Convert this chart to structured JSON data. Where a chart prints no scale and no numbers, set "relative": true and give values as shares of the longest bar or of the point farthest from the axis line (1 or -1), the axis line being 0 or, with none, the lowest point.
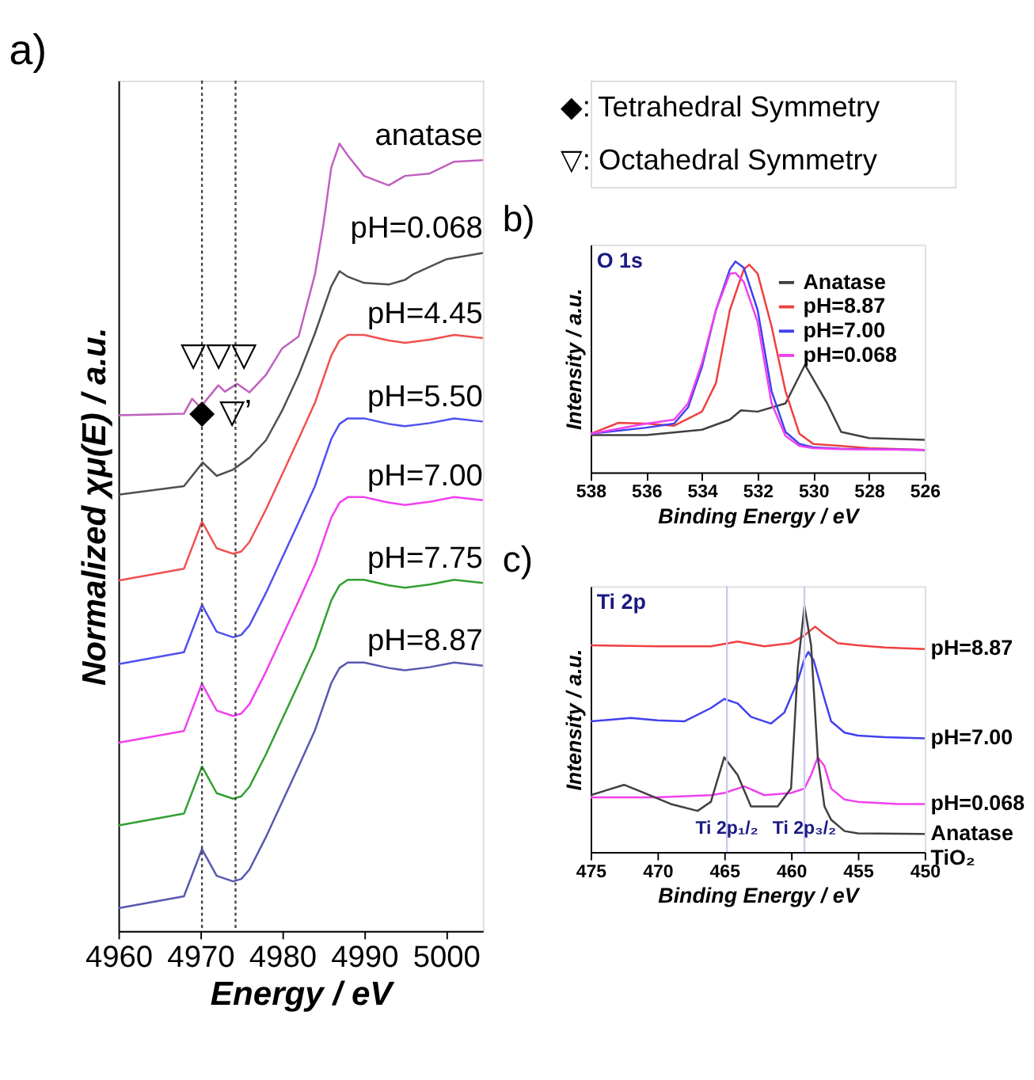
{
  "chart_data": [
    {
      "type": "line",
      "title": "a)",
      "xlabel": "Energy / eV",
      "ylabel": "Normalized χμ(E) / a.u.",
      "relative": true,
      "legend": false,
      "grid": false,
      "marker": "none",
      "line_style": "solid",
      "xlim": [
        4960,
        5004.5
      ],
      "xticks": [
        4960,
        4970,
        4980,
        4990,
        5000
      ],
      "x": [
        4960,
        4968,
        4970.2,
        4972,
        4974,
        4975,
        4976,
        4978,
        4980,
        4982,
        4984,
        4986,
        4987,
        4988,
        4990,
        4993,
        4995,
        4998,
        5001,
        5004.5
      ],
      "series": [
        {
          "name": "anatase",
          "color": "#c060c0",
          "x": [
            4960,
            4968,
            4969,
            4970,
            4972.2,
            4973,
            4974.5,
            4976,
            4978,
            4980,
            4982,
            4984,
            4985,
            4986,
            4987,
            4988,
            4990,
            4993,
            4995,
            4998,
            5001,
            5004.5
          ],
          "values": [
            0.655,
            0.657,
            0.676,
            0.665,
            0.693,
            0.685,
            0.695,
            0.684,
            0.706,
            0.74,
            0.755,
            0.834,
            0.895,
            0.97,
            1.0,
            0.985,
            0.959,
            0.947,
            0.959,
            0.962,
            0.977,
            0.979
          ]
        },
        {
          "name": "pH=0.068",
          "color": "#505050",
          "x": [
            4960,
            4968,
            4970.3,
            4972,
            4974,
            4976,
            4978,
            4980,
            4982,
            4984,
            4986,
            4987,
            4988,
            4990,
            4993,
            4995,
            4996,
            5000,
            5004.5
          ],
          "values": [
            0.554,
            0.565,
            0.595,
            0.578,
            0.586,
            0.601,
            0.623,
            0.661,
            0.706,
            0.759,
            0.819,
            0.838,
            0.831,
            0.823,
            0.821,
            0.827,
            0.834,
            0.853,
            0.861
          ]
        },
        {
          "name": "pH=4.45",
          "color": "#f05050",
          "values": [
            0.445,
            0.46,
            0.52,
            0.486,
            0.479,
            0.482,
            0.494,
            0.535,
            0.58,
            0.625,
            0.671,
            0.731,
            0.75,
            0.757,
            0.757,
            0.75,
            0.747,
            0.751,
            0.757,
            0.753
          ]
        },
        {
          "name": "pH=5.50",
          "color": "#5050f0",
          "values": [
            0.339,
            0.354,
            0.414,
            0.38,
            0.373,
            0.376,
            0.388,
            0.429,
            0.474,
            0.519,
            0.565,
            0.625,
            0.644,
            0.651,
            0.651,
            0.644,
            0.641,
            0.645,
            0.651,
            0.647
          ]
        },
        {
          "name": "pH=7.00",
          "color": "#f040f0",
          "values": [
            0.239,
            0.254,
            0.314,
            0.28,
            0.273,
            0.276,
            0.288,
            0.329,
            0.374,
            0.419,
            0.465,
            0.525,
            0.544,
            0.551,
            0.551,
            0.544,
            0.541,
            0.545,
            0.551,
            0.547
          ]
        },
        {
          "name": "pH=7.75",
          "color": "#30a030",
          "values": [
            0.134,
            0.149,
            0.209,
            0.175,
            0.168,
            0.171,
            0.183,
            0.224,
            0.269,
            0.314,
            0.36,
            0.42,
            0.439,
            0.446,
            0.446,
            0.439,
            0.436,
            0.44,
            0.446,
            0.442
          ]
        },
        {
          "name": "pH=8.87",
          "color": "#5858b0",
          "values": [
            0.029,
            0.044,
            0.104,
            0.07,
            0.063,
            0.066,
            0.078,
            0.119,
            0.164,
            0.209,
            0.255,
            0.315,
            0.334,
            0.341,
            0.341,
            0.334,
            0.331,
            0.335,
            0.341,
            0.337
          ]
        }
      ],
      "ref_lines": [
        {
          "axis": "x",
          "value": 4970.2,
          "label": null,
          "color": "#404040",
          "line_style": "dotted"
        },
        {
          "axis": "x",
          "value": 4974.3,
          "label": null,
          "color": "#404040",
          "line_style": "dotted"
        }
      ],
      "annotations": [
        "◆: Tetrahedral Symmetry",
        "▽: Octahedral Symmetry",
        {
          "text": "▽▽▽",
          "x": 4972.2,
          "y": 0.693
        },
        {
          "text": "◆",
          "x": 4970.2,
          "y": 0.62
        },
        {
          "text": "▽’",
          "x": 4974.3,
          "y": 0.62
        }
      ]
    },
    {
      "type": "line",
      "title": "b)",
      "xlabel": "Binding Energy / eV",
      "ylabel": "Intensity / a.u.",
      "relative": true,
      "legend": "top right",
      "grid": false,
      "marker": "none",
      "line_style": "solid",
      "xlim": [
        538,
        526
      ],
      "xticks": [
        538,
        536,
        534,
        532,
        530,
        528,
        526
      ],
      "series": [
        {
          "name": "Anatase",
          "color": "#404040",
          "x": [
            538,
            536,
            534,
            533,
            532.6,
            532,
            531,
            530.3,
            529.5,
            529,
            528,
            526
          ],
          "values": [
            0.177,
            0.177,
            0.202,
            0.25,
            0.294,
            0.288,
            0.327,
            0.51,
            0.327,
            0.192,
            0.163,
            0.154
          ]
        },
        {
          "name": "pH=8.87",
          "color": "#f04040",
          "x": [
            538,
            537,
            536,
            535,
            534,
            533.5,
            533,
            532.5,
            532.3,
            532,
            531.5,
            531,
            530.5,
            530,
            529,
            528,
            526
          ],
          "values": [
            0.183,
            0.235,
            0.231,
            0.221,
            0.288,
            0.423,
            0.769,
            0.962,
            0.985,
            0.942,
            0.692,
            0.385,
            0.183,
            0.135,
            0.125,
            0.115,
            0.106
          ]
        },
        {
          "name": "pH=7.00",
          "color": "#4040f0",
          "x": [
            538,
            536,
            535,
            534.5,
            534,
            533.5,
            533,
            532.8,
            532.5,
            532,
            531.5,
            531,
            530.5,
            530,
            529,
            526
          ],
          "values": [
            0.183,
            0.212,
            0.231,
            0.308,
            0.5,
            0.769,
            0.962,
            1.0,
            0.971,
            0.769,
            0.385,
            0.192,
            0.135,
            0.119,
            0.112,
            0.106
          ]
        },
        {
          "name": "pH=0.068",
          "color": "#f040f0",
          "x": [
            538,
            536,
            535,
            534.5,
            534,
            533.5,
            533,
            532.8,
            532.5,
            532,
            531.5,
            531,
            530.5,
            530,
            529,
            526
          ],
          "values": [
            0.183,
            0.231,
            0.25,
            0.327,
            0.519,
            0.769,
            0.942,
            0.946,
            0.904,
            0.712,
            0.327,
            0.173,
            0.125,
            0.115,
            0.11,
            0.106
          ]
        }
      ],
      "annotations": [
        "O 1s"
      ]
    },
    {
      "type": "line",
      "title": "c)",
      "xlabel": "Binding Energy / eV",
      "ylabel": "Intensity / a.u.",
      "relative": true,
      "legend": false,
      "grid": false,
      "marker": "none",
      "line_style": "solid",
      "xlim": [
        475,
        450
      ],
      "xticks": [
        475,
        470,
        465,
        460,
        455,
        450
      ],
      "series": [
        {
          "name": "pH=8.87",
          "color": "#f04040",
          "x": [
            475,
            470,
            466,
            464,
            462,
            460,
            459,
            458.2,
            457.5,
            456.5,
            455,
            453,
            450
          ],
          "values": [
            0.84,
            0.836,
            0.836,
            0.855,
            0.836,
            0.849,
            0.88,
            0.916,
            0.885,
            0.849,
            0.84,
            0.831,
            0.825
          ]
        },
        {
          "name": "pH=7.00",
          "color": "#4040f0",
          "x": [
            475,
            472,
            470,
            468,
            466,
            465,
            464,
            463,
            461.5,
            460.5,
            459.5,
            459,
            458.7,
            458.3,
            457.5,
            457,
            456,
            455,
            453,
            450
          ],
          "values": [
            0.531,
            0.545,
            0.535,
            0.531,
            0.585,
            0.622,
            0.604,
            0.549,
            0.522,
            0.567,
            0.695,
            0.785,
            0.813,
            0.778,
            0.622,
            0.531,
            0.485,
            0.473,
            0.467,
            0.462
          ]
        },
        {
          "name": "pH=0.068",
          "color": "#f040f0",
          "x": [
            475,
            470,
            466,
            465,
            463.5,
            462,
            460,
            459,
            458.5,
            458,
            457.5,
            457,
            456,
            455,
            452,
            450
          ],
          "values": [
            0.222,
            0.222,
            0.231,
            0.24,
            0.267,
            0.231,
            0.24,
            0.258,
            0.313,
            0.385,
            0.349,
            0.258,
            0.213,
            0.204,
            0.195,
            0.195
          ]
        },
        {
          "name": "Anatase TiO₂",
          "color": "#404040",
          "x": [
            475,
            472.5,
            471,
            469,
            467,
            466,
            465,
            464,
            463,
            461,
            460,
            459.5,
            459,
            458.5,
            458,
            457.5,
            457,
            456,
            455,
            450
          ],
          "values": [
            0.231,
            0.273,
            0.24,
            0.195,
            0.167,
            0.204,
            0.385,
            0.313,
            0.185,
            0.185,
            0.258,
            0.749,
            1.0,
            0.84,
            0.385,
            0.185,
            0.131,
            0.085,
            0.076,
            0.073
          ]
        }
      ],
      "ref_lines": [
        {
          "axis": "x",
          "value": 464.8,
          "label": null,
          "color": "#c8c8f0",
          "line_style": "solid"
        },
        {
          "axis": "x",
          "value": 459,
          "label": null,
          "color": "#c8c8f0",
          "line_style": "solid"
        }
      ],
      "annotations": [
        "Ti 2p",
        {
          "text": "Ti 2p₁/₂",
          "x": 464.8,
          "y": 0.055
        },
        {
          "text": "Ti 2p₃/₂",
          "x": 459,
          "y": 0.055
        }
      ]
    }
  ]
}
